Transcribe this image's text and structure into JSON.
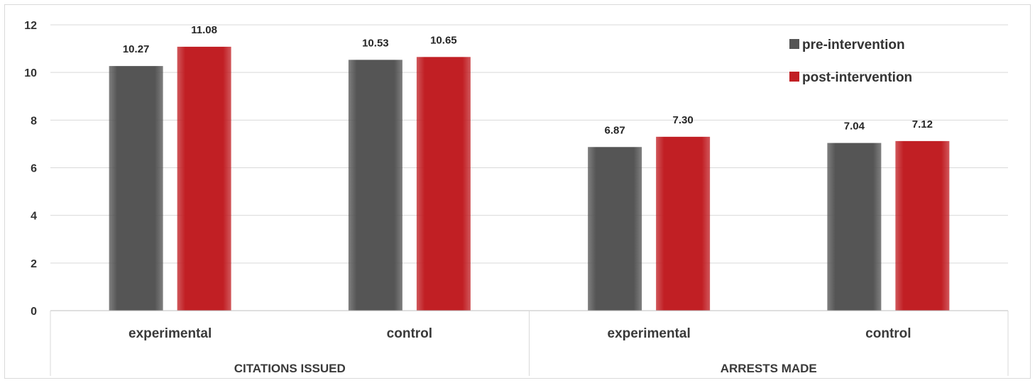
{
  "chart_data": {
    "type": "bar",
    "title": "",
    "xlabel": "",
    "ylabel": "",
    "ylim": [
      0,
      12
    ],
    "yticks": [
      0,
      2,
      4,
      6,
      8,
      10,
      12
    ],
    "grid": true,
    "legend_position": "top-right",
    "groups": [
      {
        "label": "CITATIONS ISSUED",
        "categories": [
          "experimental",
          "control"
        ]
      },
      {
        "label": "ARRESTS MADE",
        "categories": [
          "experimental",
          "control"
        ]
      }
    ],
    "series": [
      {
        "name": "pre-intervention",
        "color": "#555555",
        "values": [
          10.27,
          10.53,
          6.87,
          7.04
        ],
        "labels": [
          "10.27",
          "10.53",
          "6.87",
          "7.04"
        ]
      },
      {
        "name": "post-intervention",
        "color": "#c11f24",
        "values": [
          11.08,
          10.65,
          7.3,
          7.12
        ],
        "labels": [
          "11.08",
          "10.65",
          "7.30",
          "7.12"
        ]
      }
    ]
  }
}
